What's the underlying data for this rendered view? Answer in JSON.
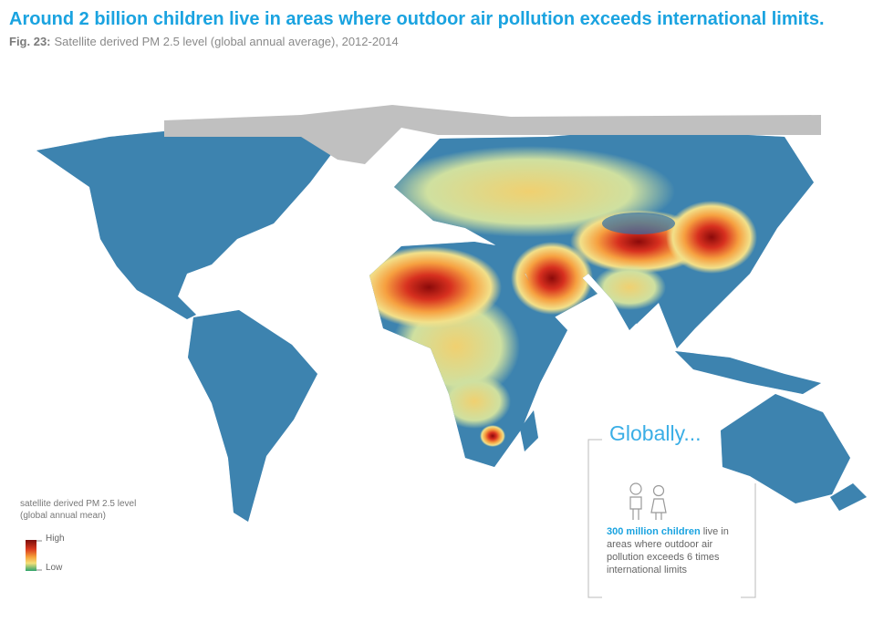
{
  "header": {
    "title": "Around 2 billion children live in areas where outdoor air pollution exceeds international limits.",
    "figure_label": "Fig. 23:",
    "subtitle": "Satellite derived PM 2.5 level (global annual average), 2012-2014"
  },
  "legend": {
    "title_lines": [
      "satellite derived PM 2.5 level",
      "(global annual mean)"
    ],
    "high": "High",
    "low": "Low"
  },
  "callout": {
    "heading": "Globally...",
    "highlight": "300 million children",
    "text": "live in areas where outdoor air pollution exceeds 6 times international limits"
  }
}
